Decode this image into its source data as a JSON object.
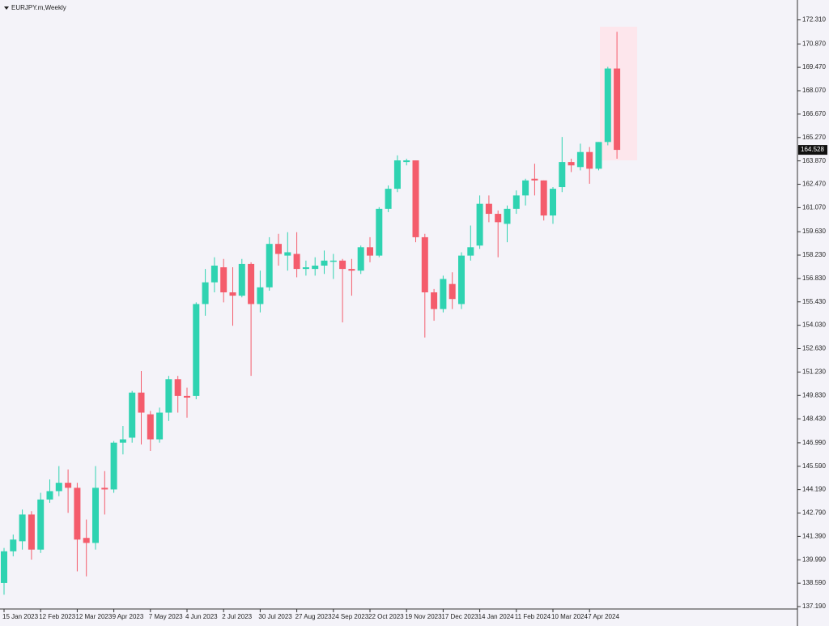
{
  "chart_data": {
    "type": "candlestick",
    "title": "EURJPY.m,Weekly",
    "categories": [
      "15 Jan 2023",
      null,
      null,
      null,
      "12 Feb 2023",
      null,
      null,
      null,
      "12 Mar 2023",
      null,
      null,
      null,
      "9 Apr 2023",
      null,
      null,
      null,
      "7 May 2023",
      null,
      null,
      null,
      "4 Jun 2023",
      null,
      null,
      null,
      "2 Jul 2023",
      null,
      null,
      null,
      "30 Jul 2023",
      null,
      null,
      null,
      "27 Aug 2023",
      null,
      null,
      null,
      "24 Sep 2023",
      null,
      null,
      null,
      "22 Oct 2023",
      null,
      null,
      null,
      "19 Nov 2023",
      null,
      null,
      null,
      "17 Dec 2023",
      null,
      null,
      null,
      "14 Jan 2024",
      null,
      null,
      null,
      "11 Feb 2024",
      null,
      null,
      null,
      "10 Mar 2024",
      null,
      null,
      null,
      "7 Apr 2024",
      null,
      null,
      null
    ],
    "open": [
      138.6,
      140.5,
      141.1,
      142.7,
      140.6,
      143.6,
      144.1,
      144.6,
      144.3,
      141.3,
      141.0,
      144.3,
      144.2,
      147.0,
      147.3,
      150.0,
      148.7,
      147.2,
      148.8,
      150.8,
      149.8,
      149.8,
      155.3,
      156.6,
      157.5,
      156.0,
      155.8,
      157.7,
      155.3,
      156.3,
      158.9,
      158.2,
      158.3,
      157.4,
      157.4,
      157.6,
      157.9,
      157.9,
      157.4,
      157.3,
      158.7,
      158.2,
      161.0,
      162.2,
      163.8,
      163.9,
      159.3,
      156.0,
      155.0,
      156.5,
      155.3,
      158.2,
      158.8,
      161.3,
      160.7,
      160.1,
      161.0,
      161.8,
      162.8,
      162.7,
      160.6,
      162.3,
      163.8,
      163.5,
      164.4,
      163.4,
      165.0,
      169.4
    ],
    "high": [
      140.7,
      141.5,
      143.0,
      142.9,
      144.0,
      144.8,
      145.6,
      145.4,
      144.6,
      142.4,
      145.6,
      145.3,
      147.1,
      148.0,
      150.1,
      151.3,
      148.9,
      149.1,
      151.0,
      151.0,
      150.3,
      155.4,
      157.4,
      158.1,
      158.0,
      157.5,
      158.0,
      157.8,
      157.3,
      159.3,
      159.5,
      159.6,
      159.6,
      157.9,
      158.1,
      158.5,
      158.3,
      158.0,
      158.0,
      158.8,
      159.3,
      161.1,
      162.4,
      164.2,
      164.0,
      163.9,
      159.5,
      156.2,
      157.0,
      157.2,
      158.4,
      160.0,
      161.8,
      161.8,
      160.9,
      161.2,
      162.1,
      162.8,
      163.7,
      162.7,
      162.3,
      165.3,
      164.0,
      164.9,
      164.7,
      165.0,
      169.5,
      171.6
    ],
    "low": [
      137.9,
      140.2,
      140.6,
      140.0,
      140.4,
      143.4,
      143.8,
      142.8,
      139.3,
      139.0,
      140.6,
      142.7,
      144.0,
      146.3,
      147.0,
      146.9,
      146.5,
      147.0,
      148.3,
      148.8,
      148.5,
      149.6,
      154.6,
      156.0,
      155.4,
      154.0,
      155.7,
      151.0,
      154.8,
      156.1,
      157.6,
      157.3,
      156.9,
      157.0,
      157.0,
      157.1,
      156.8,
      154.2,
      155.8,
      157.1,
      157.8,
      158.1,
      160.8,
      162.0,
      163.6,
      159.0,
      153.3,
      154.3,
      154.8,
      155.0,
      155.0,
      157.9,
      158.6,
      160.2,
      158.1,
      159.0,
      160.7,
      161.2,
      161.8,
      160.3,
      160.1,
      162.0,
      163.2,
      163.3,
      162.5,
      163.3,
      164.8,
      164.0
    ],
    "close": [
      140.5,
      141.2,
      142.7,
      140.6,
      143.6,
      144.1,
      144.6,
      144.3,
      141.2,
      141.0,
      144.3,
      144.2,
      147.0,
      147.2,
      150.0,
      148.8,
      147.2,
      148.8,
      150.8,
      149.8,
      149.7,
      155.3,
      156.6,
      157.6,
      156.0,
      155.8,
      157.7,
      155.3,
      156.3,
      158.9,
      158.3,
      158.4,
      157.4,
      157.5,
      157.6,
      157.9,
      157.9,
      157.4,
      157.3,
      158.7,
      158.2,
      161.0,
      162.2,
      163.9,
      163.9,
      159.3,
      156.0,
      155.0,
      156.8,
      155.6,
      158.2,
      158.7,
      161.3,
      160.7,
      160.2,
      161.0,
      161.8,
      162.7,
      162.7,
      160.6,
      162.2,
      163.8,
      163.6,
      164.4,
      163.4,
      165.0,
      169.4,
      164.528
    ],
    "up_color": "#2fd3b1",
    "down_color": "#f45c6c",
    "current_price": {
      "value": 164.528,
      "label": "164.528"
    },
    "ylim": [
      136.9,
      173.5
    ],
    "yticks": [
      {
        "value": 137.19,
        "label": "137.190"
      },
      {
        "value": 138.59,
        "label": "138.590"
      },
      {
        "value": 139.99,
        "label": "139.990"
      },
      {
        "value": 141.39,
        "label": "141.390"
      },
      {
        "value": 142.79,
        "label": "142.790"
      },
      {
        "value": 144.19,
        "label": "144.190"
      },
      {
        "value": 145.59,
        "label": "145.590"
      },
      {
        "value": 146.99,
        "label": "146.990"
      },
      {
        "value": 148.43,
        "label": "148.430"
      },
      {
        "value": 149.83,
        "label": "149.830"
      },
      {
        "value": 151.23,
        "label": "151.230"
      },
      {
        "value": 152.63,
        "label": "152.630"
      },
      {
        "value": 154.03,
        "label": "154.030"
      },
      {
        "value": 155.43,
        "label": "155.430"
      },
      {
        "value": 156.83,
        "label": "156.830"
      },
      {
        "value": 158.23,
        "label": "158.230"
      },
      {
        "value": 159.63,
        "label": "159.630"
      },
      {
        "value": 161.07,
        "label": "161.070"
      },
      {
        "value": 162.47,
        "label": "162.470"
      },
      {
        "value": 163.87,
        "label": "163.870"
      },
      {
        "value": 165.27,
        "label": "165.270"
      },
      {
        "value": 166.67,
        "label": "166.670"
      },
      {
        "value": 168.07,
        "label": "168.070"
      },
      {
        "value": 169.47,
        "label": "169.470"
      },
      {
        "value": 170.87,
        "label": "170.870"
      },
      {
        "value": 172.31,
        "label": "172.310"
      }
    ],
    "grid": false
  }
}
